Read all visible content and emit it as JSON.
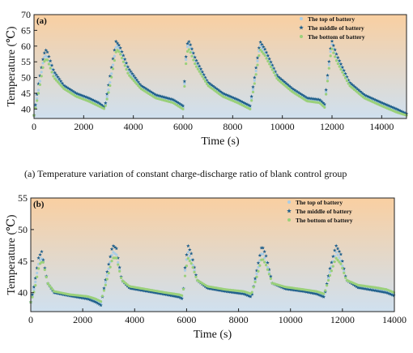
{
  "caption": "(a)  Temperature variation of constant charge-discharge ratio of blank control group",
  "chart_data": [
    {
      "type": "scatter",
      "panel_label": "(a)",
      "xlabel": "Time (s)",
      "ylabel": "Temperature (℃)",
      "xlim": [
        0,
        15000
      ],
      "ylim": [
        37,
        70
      ],
      "xticks": [
        0,
        2000,
        4000,
        6000,
        8000,
        10000,
        12000,
        14000
      ],
      "yticks": [
        40,
        45,
        50,
        55,
        60,
        65,
        70
      ],
      "grid": false,
      "legend_position": "top-right",
      "background_gradient": [
        "#f9cfa1",
        "#cfe0ef"
      ],
      "series": [
        {
          "name": "The top of battery",
          "marker": "circle",
          "color": "#a9cde6",
          "points": [
            [
              0,
              38
            ],
            [
              180,
              46
            ],
            [
              400,
              56.5
            ],
            [
              520,
              57
            ],
            [
              800,
              51
            ],
            [
              1200,
              47
            ],
            [
              1700,
              44.5
            ],
            [
              2200,
              43
            ],
            [
              2600,
              41.5
            ],
            [
              2850,
              40.5
            ],
            [
              3050,
              48
            ],
            [
              3320,
              60.5
            ],
            [
              3450,
              59
            ],
            [
              3800,
              52
            ],
            [
              4300,
              47
            ],
            [
              4900,
              44
            ],
            [
              5600,
              42.5
            ],
            [
              5900,
              41
            ],
            [
              6000,
              40.5
            ],
            [
              6150,
              59.5
            ],
            [
              6250,
              60.5
            ],
            [
              6500,
              55
            ],
            [
              7000,
              48
            ],
            [
              7600,
              44.5
            ],
            [
              8200,
              42.5
            ],
            [
              8700,
              40.5
            ],
            [
              8900,
              50
            ],
            [
              9100,
              60.5
            ],
            [
              9300,
              58
            ],
            [
              9800,
              50
            ],
            [
              10400,
              46
            ],
            [
              11000,
              43
            ],
            [
              11500,
              42.5
            ],
            [
              11700,
              41
            ],
            [
              11850,
              52
            ],
            [
              11980,
              61
            ],
            [
              12200,
              56
            ],
            [
              12700,
              48
            ],
            [
              13300,
              44
            ],
            [
              14000,
              41.5
            ],
            [
              14600,
              39.5
            ],
            [
              15000,
              38.5
            ]
          ]
        },
        {
          "name": "The middle of battery",
          "marker": "star",
          "color": "#1f5f8b",
          "points": [
            [
              0,
              38
            ],
            [
              180,
              48
            ],
            [
              400,
              57.5
            ],
            [
              500,
              59
            ],
            [
              800,
              52
            ],
            [
              1200,
              47.5
            ],
            [
              1700,
              45
            ],
            [
              2200,
              43.5
            ],
            [
              2600,
              42
            ],
            [
              2850,
              40.5
            ],
            [
              3050,
              50
            ],
            [
              3300,
              61.5
            ],
            [
              3450,
              60
            ],
            [
              3800,
              53
            ],
            [
              4300,
              47.5
            ],
            [
              4900,
              44.5
            ],
            [
              5600,
              43
            ],
            [
              5900,
              41.5
            ],
            [
              6000,
              41
            ],
            [
              6150,
              60.5
            ],
            [
              6250,
              61.5
            ],
            [
              6500,
              56
            ],
            [
              7000,
              48.5
            ],
            [
              7600,
              45
            ],
            [
              8200,
              43
            ],
            [
              8700,
              41
            ],
            [
              8900,
              51
            ],
            [
              9100,
              61.5
            ],
            [
              9300,
              59
            ],
            [
              9800,
              50.5
            ],
            [
              10400,
              46.5
            ],
            [
              11000,
              43.5
            ],
            [
              11500,
              43
            ],
            [
              11700,
              41.5
            ],
            [
              11850,
              53
            ],
            [
              11980,
              62
            ],
            [
              12200,
              57
            ],
            [
              12700,
              48.5
            ],
            [
              13300,
              44.5
            ],
            [
              14000,
              42
            ],
            [
              14600,
              40
            ],
            [
              15000,
              38.5
            ]
          ]
        },
        {
          "name": "The bottom of battery",
          "marker": "circle",
          "color": "#9ad07a",
          "points": [
            [
              0,
              38
            ],
            [
              180,
              45
            ],
            [
              400,
              55
            ],
            [
              520,
              56
            ],
            [
              800,
              50
            ],
            [
              1200,
              46.5
            ],
            [
              1700,
              44
            ],
            [
              2200,
              42.5
            ],
            [
              2600,
              41
            ],
            [
              2850,
              40
            ],
            [
              3050,
              47
            ],
            [
              3320,
              59
            ],
            [
              3450,
              58
            ],
            [
              3800,
              51
            ],
            [
              4300,
              46.5
            ],
            [
              4900,
              43.5
            ],
            [
              5600,
              42
            ],
            [
              5900,
              40.5
            ],
            [
              6000,
              40
            ],
            [
              6150,
              58
            ],
            [
              6250,
              59
            ],
            [
              6500,
              54
            ],
            [
              7000,
              47.5
            ],
            [
              7600,
              44
            ],
            [
              8200,
              42
            ],
            [
              8700,
              40
            ],
            [
              8900,
              49
            ],
            [
              9100,
              59
            ],
            [
              9300,
              57
            ],
            [
              9800,
              49.5
            ],
            [
              10400,
              45.5
            ],
            [
              11000,
              42.5
            ],
            [
              11500,
              42
            ],
            [
              11700,
              40.5
            ],
            [
              11850,
              51
            ],
            [
              11980,
              59.5
            ],
            [
              12200,
              55
            ],
            [
              12700,
              47.5
            ],
            [
              13300,
              43.5
            ],
            [
              14000,
              41
            ],
            [
              14600,
              39
            ],
            [
              15000,
              38
            ]
          ]
        }
      ]
    },
    {
      "type": "scatter",
      "panel_label": "(b)",
      "xlabel": "Time (s)",
      "ylabel": "Temperature (℃)",
      "xlim": [
        0,
        14000
      ],
      "ylim": [
        37,
        55
      ],
      "xticks": [
        0,
        2000,
        4000,
        6000,
        8000,
        10000,
        12000,
        14000
      ],
      "yticks": [
        40,
        45,
        50,
        55
      ],
      "grid": false,
      "legend_position": "top-right",
      "background_gradient": [
        "#f9cfa1",
        "#cfe0ef"
      ],
      "series": [
        {
          "name": "The top of battery",
          "marker": "circle",
          "color": "#a9cde6",
          "points": [
            [
              0,
              38.5
            ],
            [
              150,
              41
            ],
            [
              320,
              45
            ],
            [
              450,
              45.5
            ],
            [
              650,
              41.5
            ],
            [
              900,
              40
            ],
            [
              1500,
              39.5
            ],
            [
              2200,
              39.2
            ],
            [
              2500,
              38.8
            ],
            [
              2700,
              38.3
            ],
            [
              2900,
              42
            ],
            [
              3150,
              46.5
            ],
            [
              3300,
              46
            ],
            [
              3500,
              42
            ],
            [
              3800,
              40.8
            ],
            [
              4500,
              40.3
            ],
            [
              5200,
              39.8
            ],
            [
              5700,
              39.5
            ],
            [
              5850,
              39.2
            ],
            [
              5950,
              44
            ],
            [
              6050,
              46.5
            ],
            [
              6200,
              45
            ],
            [
              6400,
              42
            ],
            [
              6800,
              40.8
            ],
            [
              7500,
              40.3
            ],
            [
              8200,
              40
            ],
            [
              8500,
              39.5
            ],
            [
              8700,
              43
            ],
            [
              8900,
              46.5
            ],
            [
              9050,
              45
            ],
            [
              9300,
              41.5
            ],
            [
              9800,
              40.7
            ],
            [
              10500,
              40.3
            ],
            [
              11000,
              40
            ],
            [
              11300,
              39.5
            ],
            [
              11500,
              43
            ],
            [
              11750,
              46.5
            ],
            [
              11950,
              45
            ],
            [
              12150,
              42
            ],
            [
              12600,
              41
            ],
            [
              13300,
              40.5
            ],
            [
              13700,
              40.2
            ],
            [
              14000,
              39.8
            ]
          ]
        },
        {
          "name": "The middle of battery",
          "marker": "star",
          "color": "#1f5f8b",
          "points": [
            [
              0,
              38.5
            ],
            [
              150,
              41.5
            ],
            [
              300,
              45.5
            ],
            [
              420,
              46.5
            ],
            [
              650,
              41.5
            ],
            [
              900,
              40
            ],
            [
              1500,
              39.5
            ],
            [
              2200,
              39
            ],
            [
              2500,
              38.5
            ],
            [
              2700,
              38
            ],
            [
              2900,
              42.5
            ],
            [
              3150,
              47.5
            ],
            [
              3300,
              47
            ],
            [
              3500,
              42
            ],
            [
              3800,
              40.7
            ],
            [
              4500,
              40.2
            ],
            [
              5200,
              39.7
            ],
            [
              5700,
              39.3
            ],
            [
              5850,
              39
            ],
            [
              5950,
              44.5
            ],
            [
              6050,
              47.5
            ],
            [
              6200,
              46
            ],
            [
              6400,
              42
            ],
            [
              6800,
              40.7
            ],
            [
              7500,
              40.2
            ],
            [
              8200,
              39.8
            ],
            [
              8500,
              39.3
            ],
            [
              8700,
              43.5
            ],
            [
              8900,
              47.5
            ],
            [
              9050,
              46
            ],
            [
              9300,
              41.5
            ],
            [
              9800,
              40.6
            ],
            [
              10500,
              40.2
            ],
            [
              11000,
              39.8
            ],
            [
              11300,
              39.3
            ],
            [
              11500,
              43.5
            ],
            [
              11750,
              47.5
            ],
            [
              11950,
              46
            ],
            [
              12150,
              42
            ],
            [
              12600,
              40.8
            ],
            [
              13300,
              40.3
            ],
            [
              13700,
              40
            ],
            [
              14000,
              39.5
            ]
          ]
        },
        {
          "name": "The bottom of battery",
          "marker": "circle",
          "color": "#9ad07a",
          "points": [
            [
              0,
              38.5
            ],
            [
              150,
              40.5
            ],
            [
              330,
              44.5
            ],
            [
              470,
              45
            ],
            [
              650,
              41.5
            ],
            [
              900,
              40.2
            ],
            [
              1500,
              39.7
            ],
            [
              2200,
              39.4
            ],
            [
              2500,
              39
            ],
            [
              2700,
              38.6
            ],
            [
              2900,
              41.5
            ],
            [
              3150,
              45.5
            ],
            [
              3300,
              45.5
            ],
            [
              3500,
              42
            ],
            [
              3800,
              41
            ],
            [
              4500,
              40.5
            ],
            [
              5200,
              40
            ],
            [
              5700,
              39.7
            ],
            [
              5850,
              39.5
            ],
            [
              5950,
              43
            ],
            [
              6050,
              45.5
            ],
            [
              6200,
              44.5
            ],
            [
              6400,
              42
            ],
            [
              6800,
              41
            ],
            [
              7500,
              40.5
            ],
            [
              8200,
              40.2
            ],
            [
              8500,
              39.8
            ],
            [
              8700,
              42.5
            ],
            [
              8900,
              45.5
            ],
            [
              9050,
              44.5
            ],
            [
              9300,
              41.5
            ],
            [
              9800,
              40.9
            ],
            [
              10500,
              40.5
            ],
            [
              11000,
              40.2
            ],
            [
              11300,
              39.8
            ],
            [
              11500,
              42.5
            ],
            [
              11750,
              45.5
            ],
            [
              11950,
              44.5
            ],
            [
              12150,
              42
            ],
            [
              12600,
              41.2
            ],
            [
              13300,
              40.8
            ],
            [
              13700,
              40.5
            ],
            [
              14000,
              40
            ]
          ]
        }
      ]
    }
  ]
}
